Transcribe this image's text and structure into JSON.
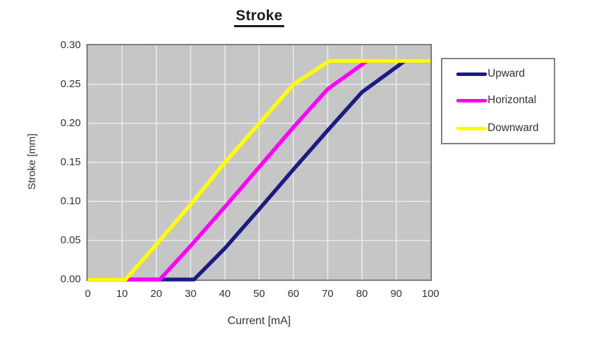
{
  "figure": {
    "title": "Stroke"
  },
  "chart_data": {
    "type": "line",
    "title": "Stroke",
    "xlabel": "Current [mA]",
    "ylabel": "Stroke [mm]",
    "xlim": [
      0,
      100
    ],
    "ylim": [
      0,
      0.3
    ],
    "x_ticks": [
      "0",
      "10",
      "20",
      "30",
      "40",
      "50",
      "60",
      "70",
      "80",
      "90",
      "100"
    ],
    "y_ticks": [
      "0.00",
      "0.05",
      "0.10",
      "0.15",
      "0.20",
      "0.25",
      "0.30"
    ],
    "grid": true,
    "plot_background": "#c6c6c6",
    "grid_color": "#ebebeb",
    "border_color": "#7d7d7d",
    "legend_position": "outside-top-right",
    "series": [
      {
        "name": "Upward",
        "color": "#1b1b85",
        "points": [
          [
            0,
            0
          ],
          [
            31,
            0
          ],
          [
            40,
            0.04
          ],
          [
            50,
            0.09
          ],
          [
            60,
            0.141
          ],
          [
            70,
            0.191
          ],
          [
            80,
            0.24
          ],
          [
            92.5,
            0.28
          ],
          [
            100,
            0.28
          ]
        ]
      },
      {
        "name": "Horizontal",
        "color": "#ff00ff",
        "points": [
          [
            0,
            0
          ],
          [
            21,
            0
          ],
          [
            30,
            0.043
          ],
          [
            40,
            0.093
          ],
          [
            50,
            0.144
          ],
          [
            60,
            0.195
          ],
          [
            70,
            0.244
          ],
          [
            81.5,
            0.28
          ],
          [
            100,
            0.28
          ]
        ]
      },
      {
        "name": "Downward",
        "color": "#ffff00",
        "points": [
          [
            0,
            0
          ],
          [
            11,
            0
          ],
          [
            20,
            0.045
          ],
          [
            30,
            0.096
          ],
          [
            40,
            0.15
          ],
          [
            50,
            0.2
          ],
          [
            60,
            0.25
          ],
          [
            70.5,
            0.28
          ],
          [
            100,
            0.28
          ]
        ]
      }
    ]
  }
}
